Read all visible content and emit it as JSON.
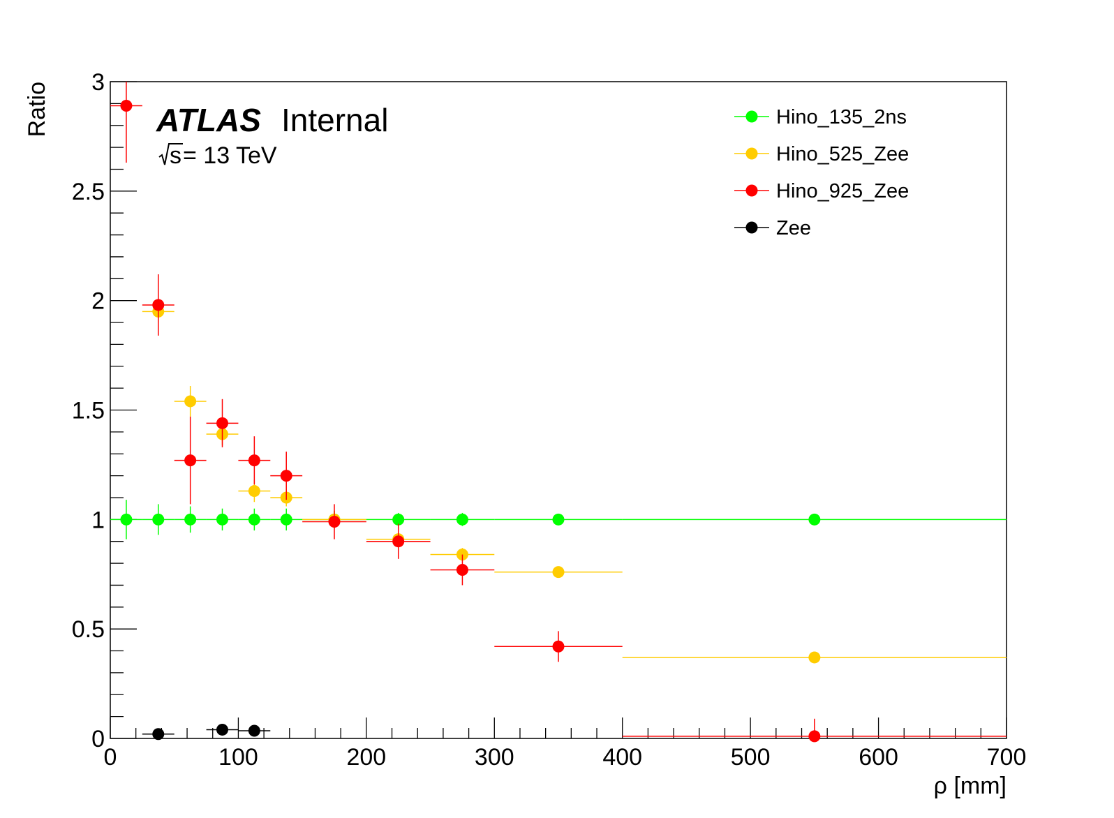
{
  "chart_data": {
    "type": "scatter",
    "title": "",
    "xlabel": "ρ [mm]",
    "ylabel": "Ratio",
    "xlim": [
      0,
      700
    ],
    "ylim": [
      0,
      3
    ],
    "x_ticks": [
      "0",
      "100",
      "200",
      "300",
      "400",
      "500",
      "600",
      "700"
    ],
    "y_ticks": [
      "0",
      "0.5",
      "1",
      "1.5",
      "2",
      "2.5",
      "3"
    ],
    "grid": false,
    "legend_position": "top-right",
    "annotation": {
      "experiment": "ATLAS",
      "status": "Internal",
      "energy_root": "s",
      "energy_rest": " = 13 TeV"
    },
    "series": [
      {
        "name": "Hino_135_2ns",
        "color": "#00ff00",
        "marker": "circle",
        "points": [
          {
            "x": 12.5,
            "y": 1.0,
            "xerr": 12.5,
            "yerr": 0.09
          },
          {
            "x": 37.5,
            "y": 1.0,
            "xerr": 12.5,
            "yerr": 0.07
          },
          {
            "x": 62.5,
            "y": 1.0,
            "xerr": 12.5,
            "yerr": 0.06
          },
          {
            "x": 87.5,
            "y": 1.0,
            "xerr": 12.5,
            "yerr": 0.05
          },
          {
            "x": 112.5,
            "y": 1.0,
            "xerr": 12.5,
            "yerr": 0.05
          },
          {
            "x": 137.5,
            "y": 1.0,
            "xerr": 12.5,
            "yerr": 0.05
          },
          {
            "x": 175,
            "y": 1.0,
            "xerr": 25,
            "yerr": 0.04
          },
          {
            "x": 225,
            "y": 1.0,
            "xerr": 25,
            "yerr": 0.03
          },
          {
            "x": 275,
            "y": 1.0,
            "xerr": 25,
            "yerr": 0.03
          },
          {
            "x": 350,
            "y": 1.0,
            "xerr": 50,
            "yerr": 0.02
          },
          {
            "x": 550,
            "y": 1.0,
            "xerr": 150,
            "yerr": 0.02
          }
        ]
      },
      {
        "name": "Hino_525_Zee",
        "color": "#ffcc00",
        "marker": "circle",
        "points": [
          {
            "x": 37.5,
            "y": 1.95,
            "xerr": 12.5,
            "yerr": 0.05
          },
          {
            "x": 62.5,
            "y": 1.54,
            "xerr": 12.5,
            "yerr": 0.07
          },
          {
            "x": 87.5,
            "y": 1.39,
            "xerr": 12.5,
            "yerr": 0.05
          },
          {
            "x": 112.5,
            "y": 1.13,
            "xerr": 12.5,
            "yerr": 0.05
          },
          {
            "x": 137.5,
            "y": 1.1,
            "xerr": 12.5,
            "yerr": 0.04
          },
          {
            "x": 175,
            "y": 1.0,
            "xerr": 25,
            "yerr": 0.04
          },
          {
            "x": 225,
            "y": 0.91,
            "xerr": 25,
            "yerr": 0.03
          },
          {
            "x": 275,
            "y": 0.84,
            "xerr": 25,
            "yerr": 0.03
          },
          {
            "x": 350,
            "y": 0.76,
            "xerr": 50,
            "yerr": 0.02
          },
          {
            "x": 550,
            "y": 0.37,
            "xerr": 150,
            "yerr": 0.02
          }
        ]
      },
      {
        "name": "Hino_925_Zee",
        "color": "#ff0000",
        "marker": "circle",
        "points": [
          {
            "x": 12.5,
            "y": 2.89,
            "xerr": 12.5,
            "yerr": 0.26
          },
          {
            "x": 37.5,
            "y": 1.98,
            "xerr": 12.5,
            "yerr": 0.14
          },
          {
            "x": 62.5,
            "y": 1.27,
            "xerr": 12.5,
            "yerr": 0.2
          },
          {
            "x": 87.5,
            "y": 1.44,
            "xerr": 12.5,
            "yerr": 0.11
          },
          {
            "x": 112.5,
            "y": 1.27,
            "xerr": 12.5,
            "yerr": 0.11
          },
          {
            "x": 137.5,
            "y": 1.2,
            "xerr": 12.5,
            "yerr": 0.11
          },
          {
            "x": 175,
            "y": 0.99,
            "xerr": 25,
            "yerr": 0.08
          },
          {
            "x": 225,
            "y": 0.9,
            "xerr": 25,
            "yerr": 0.08
          },
          {
            "x": 275,
            "y": 0.77,
            "xerr": 25,
            "yerr": 0.07
          },
          {
            "x": 350,
            "y": 0.42,
            "xerr": 50,
            "yerr": 0.07
          },
          {
            "x": 550,
            "y": 0.01,
            "xerr": 150,
            "yerr": 0.08
          }
        ]
      },
      {
        "name": "Zee",
        "color": "#000000",
        "marker": "circle",
        "points": [
          {
            "x": 37.5,
            "y": 0.02,
            "xerr": 12.5,
            "yerr": 0.005
          },
          {
            "x": 87.5,
            "y": 0.04,
            "xerr": 12.5,
            "yerr": 0.005
          },
          {
            "x": 112.5,
            "y": 0.035,
            "xerr": 12.5,
            "yerr": 0.005
          }
        ]
      }
    ]
  }
}
